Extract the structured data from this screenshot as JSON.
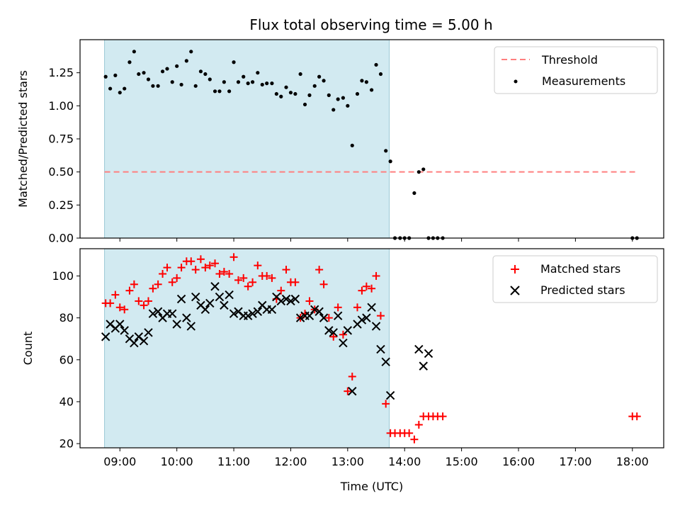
{
  "chart_data": [
    {
      "type": "scatter",
      "title": "Flux total observing time = 5.00 h",
      "ylabel": "Matched/Predicted stars",
      "xlabel": "",
      "xlim": [
        8.3,
        18.55
      ],
      "ylim": [
        0.0,
        1.5
      ],
      "yticks": [
        "0.00",
        "0.25",
        "0.50",
        "0.75",
        "1.00",
        "1.25"
      ],
      "grid": false,
      "legend_position": "top-right",
      "shaded_interval": [
        8.73,
        13.73
      ],
      "threshold": {
        "name": "Threshold",
        "value": 0.5,
        "x_range": [
          8.73,
          18.1
        ],
        "color": "#ff7f7f"
      },
      "series": [
        {
          "name": "Measurements",
          "color": "#000000",
          "x": [
            8.75,
            8.83,
            8.92,
            9.0,
            9.08,
            9.17,
            9.25,
            9.33,
            9.42,
            9.5,
            9.58,
            9.67,
            9.75,
            9.83,
            9.92,
            10.0,
            10.08,
            10.17,
            10.25,
            10.33,
            10.42,
            10.5,
            10.58,
            10.67,
            10.75,
            10.83,
            10.92,
            11.0,
            11.08,
            11.17,
            11.25,
            11.33,
            11.42,
            11.5,
            11.58,
            11.67,
            11.75,
            11.83,
            11.92,
            12.0,
            12.08,
            12.17,
            12.25,
            12.33,
            12.42,
            12.5,
            12.58,
            12.67,
            12.75,
            12.83,
            12.92,
            13.0,
            13.08,
            13.17,
            13.25,
            13.33,
            13.42,
            13.5,
            13.58,
            13.67,
            13.75,
            13.83,
            13.92,
            14.0,
            14.08,
            14.17,
            14.25,
            14.33,
            14.42,
            14.5,
            14.58,
            14.67,
            18.0,
            18.08
          ],
          "y": [
            1.22,
            1.13,
            1.23,
            1.1,
            1.13,
            1.33,
            1.41,
            1.24,
            1.25,
            1.2,
            1.15,
            1.15,
            1.26,
            1.28,
            1.18,
            1.3,
            1.16,
            1.34,
            1.41,
            1.15,
            1.26,
            1.24,
            1.2,
            1.11,
            1.11,
            1.18,
            1.11,
            1.33,
            1.18,
            1.22,
            1.17,
            1.18,
            1.25,
            1.16,
            1.17,
            1.17,
            1.09,
            1.07,
            1.14,
            1.1,
            1.09,
            1.24,
            1.01,
            1.08,
            1.15,
            1.22,
            1.19,
            1.08,
            0.97,
            1.05,
            1.06,
            1.0,
            0.7,
            1.09,
            1.19,
            1.18,
            1.12,
            1.31,
            1.24,
            0.66,
            0.58,
            0.0,
            0.0,
            0.0,
            0.0,
            0.34,
            0.5,
            0.52,
            0.0,
            0.0,
            0.0,
            0.0,
            0.0,
            0.0
          ]
        }
      ]
    },
    {
      "type": "scatter",
      "title": "",
      "xlabel": "Time (UTC)",
      "ylabel": "Count",
      "xlim": [
        8.3,
        18.55
      ],
      "ylim": [
        18,
        113
      ],
      "xticks": [
        "09:00",
        "10:00",
        "11:00",
        "12:00",
        "13:00",
        "14:00",
        "15:00",
        "16:00",
        "17:00",
        "18:00"
      ],
      "yticks": [
        "20",
        "40",
        "60",
        "80",
        "100"
      ],
      "grid": false,
      "legend_position": "top-right",
      "shaded_interval": [
        8.73,
        13.73
      ],
      "series": [
        {
          "name": "Matched stars",
          "color": "#ff0000",
          "marker": "plus",
          "x": [
            8.75,
            8.83,
            8.92,
            9.0,
            9.08,
            9.17,
            9.25,
            9.33,
            9.42,
            9.5,
            9.58,
            9.67,
            9.75,
            9.83,
            9.92,
            10.0,
            10.08,
            10.17,
            10.25,
            10.33,
            10.42,
            10.5,
            10.58,
            10.67,
            10.75,
            10.83,
            10.92,
            11.0,
            11.08,
            11.17,
            11.25,
            11.33,
            11.42,
            11.5,
            11.58,
            11.67,
            11.75,
            11.83,
            11.92,
            12.0,
            12.08,
            12.17,
            12.25,
            12.33,
            12.42,
            12.5,
            12.58,
            12.67,
            12.75,
            12.83,
            12.92,
            13.0,
            13.08,
            13.17,
            13.25,
            13.33,
            13.42,
            13.5,
            13.58,
            13.67,
            13.75,
            13.83,
            13.92,
            14.0,
            14.08,
            14.17,
            14.25,
            14.33,
            14.42,
            14.5,
            14.58,
            14.67,
            18.0,
            18.08
          ],
          "y": [
            87,
            87,
            91,
            85,
            84,
            93,
            96,
            88,
            86,
            88,
            94,
            96,
            101,
            104,
            97,
            99,
            104,
            107,
            107,
            103,
            108,
            104,
            105,
            106,
            101,
            102,
            101,
            109,
            98,
            99,
            95,
            97,
            105,
            100,
            100,
            99,
            89,
            93,
            103,
            97,
            97,
            80,
            82,
            88,
            84,
            103,
            96,
            80,
            71,
            85,
            72,
            45,
            52,
            85,
            93,
            95,
            94,
            100,
            81,
            39,
            25,
            25,
            25,
            25,
            25,
            22,
            29,
            33,
            33,
            33,
            33,
            33,
            33,
            33
          ]
        },
        {
          "name": "Predicted stars",
          "color": "#000000",
          "marker": "x",
          "x": [
            8.75,
            8.83,
            8.92,
            9.0,
            9.08,
            9.17,
            9.25,
            9.33,
            9.42,
            9.5,
            9.58,
            9.67,
            9.75,
            9.83,
            9.92,
            10.0,
            10.08,
            10.17,
            10.25,
            10.33,
            10.42,
            10.5,
            10.58,
            10.67,
            10.75,
            10.83,
            10.92,
            11.0,
            11.08,
            11.17,
            11.25,
            11.33,
            11.42,
            11.5,
            11.58,
            11.67,
            11.75,
            11.83,
            11.92,
            12.0,
            12.08,
            12.17,
            12.25,
            12.33,
            12.42,
            12.5,
            12.58,
            12.67,
            12.75,
            12.83,
            12.92,
            13.0,
            13.08,
            13.17,
            13.25,
            13.33,
            13.42,
            13.5,
            13.58,
            13.67,
            13.75,
            14.25,
            14.33,
            14.42
          ],
          "y": [
            71,
            77,
            75,
            77,
            74,
            70,
            68,
            71,
            69,
            73,
            82,
            83,
            80,
            82,
            82,
            77,
            89,
            80,
            76,
            90,
            86,
            84,
            87,
            95,
            90,
            86,
            91,
            82,
            83,
            81,
            81,
            82,
            83,
            86,
            84,
            84,
            90,
            88,
            89,
            88,
            89,
            80,
            81,
            81,
            84,
            83,
            80,
            74,
            73,
            81,
            68,
            74,
            45,
            77,
            79,
            80,
            85,
            76,
            65,
            59,
            43,
            65,
            57,
            63
          ]
        }
      ]
    }
  ]
}
